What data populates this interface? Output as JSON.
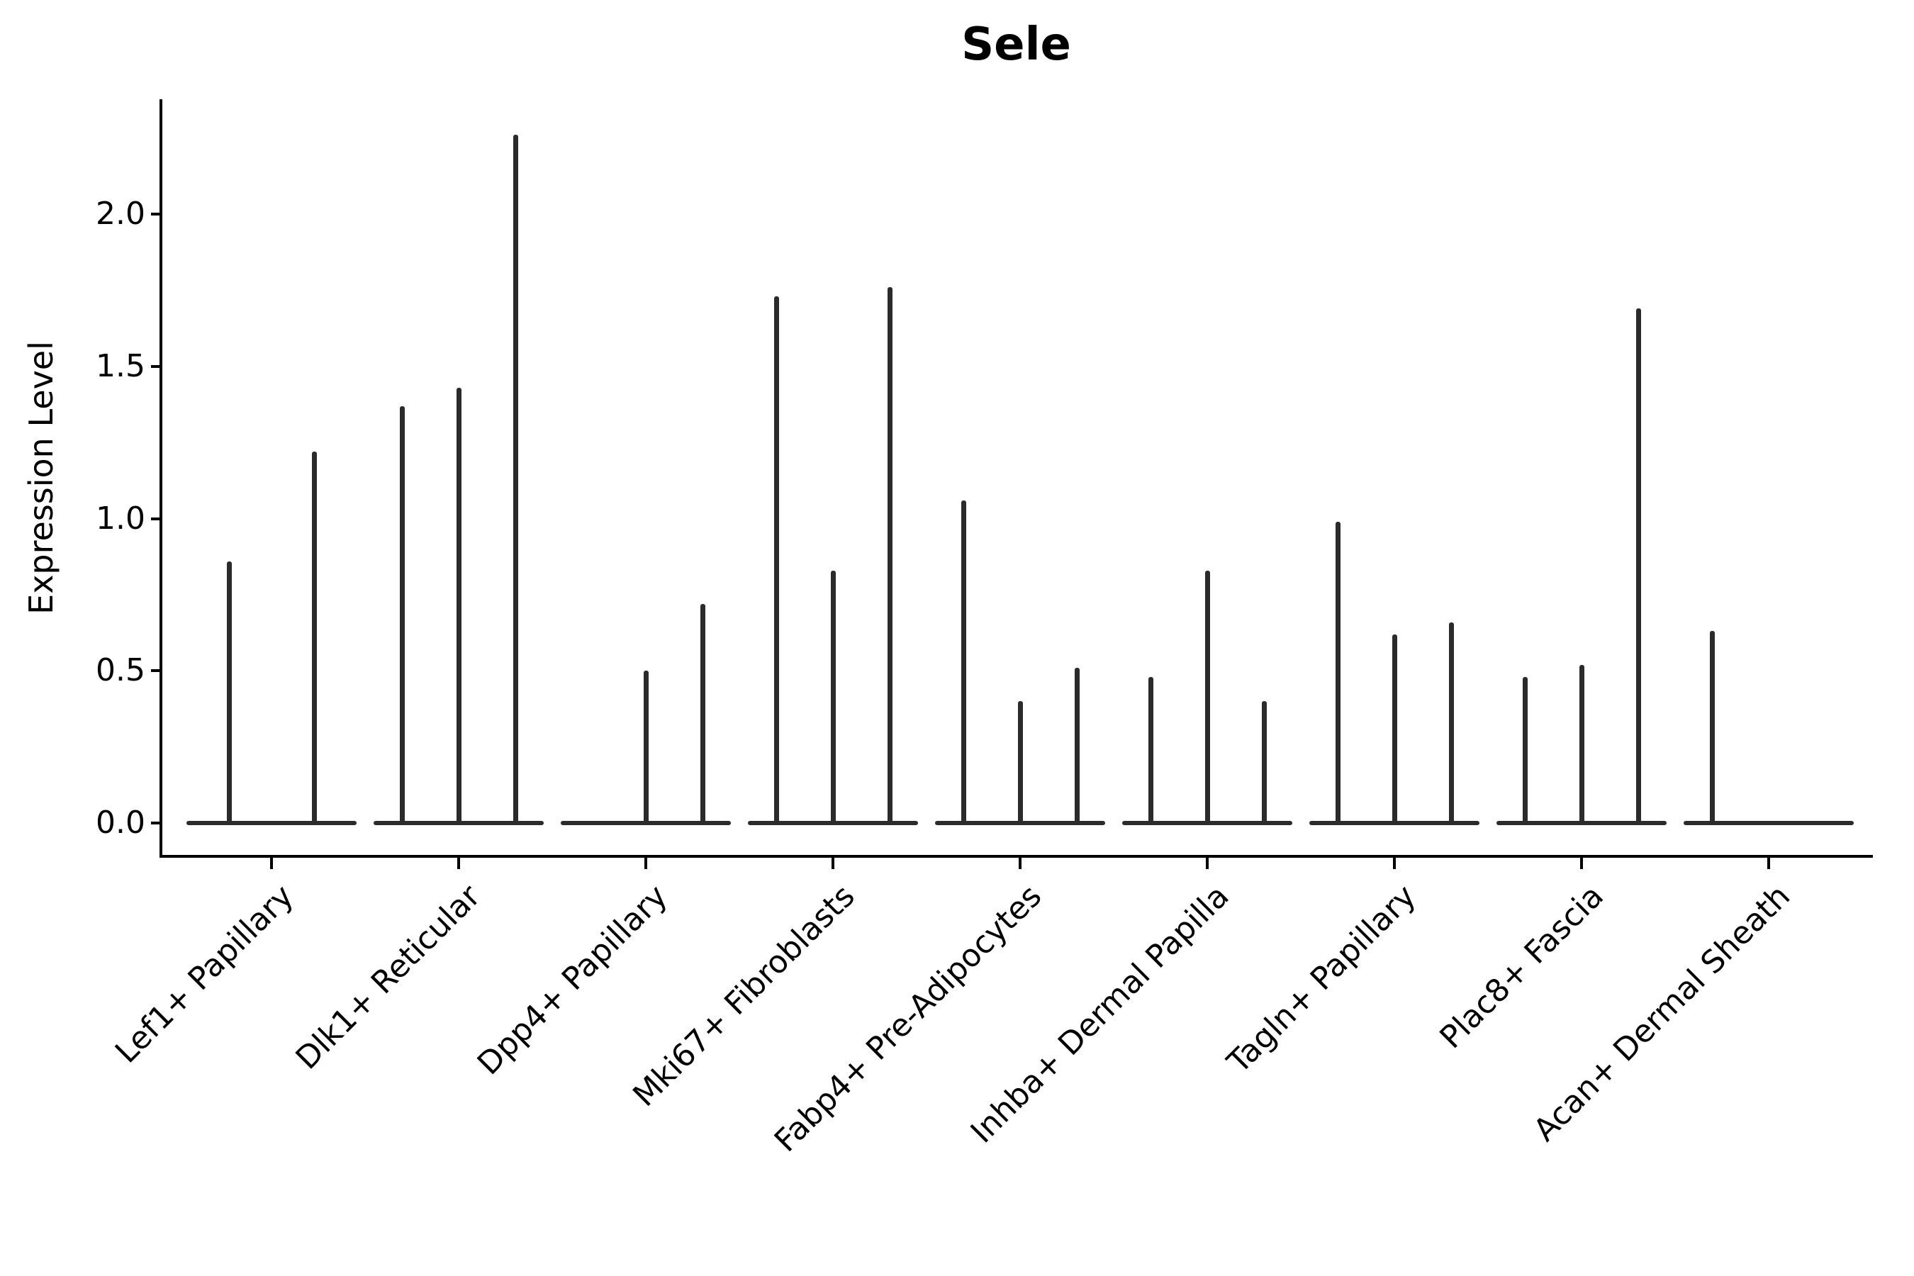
{
  "chart_data": {
    "type": "violin",
    "title": "Sele",
    "ylabel": "Expression Level",
    "xlabel": "",
    "ylim": [
      -0.1,
      2.38
    ],
    "yticks": [
      0.0,
      0.5,
      1.0,
      1.5,
      2.0
    ],
    "ytick_labels": [
      "0.0",
      "0.5",
      "1.0",
      "1.5",
      "2.0"
    ],
    "grid": false,
    "categories": [
      {
        "label": "Lef1+ Papillary",
        "violin_max_values": [
          0.86,
          1.22
        ]
      },
      {
        "label": "Dlk1+ Reticular",
        "violin_max_values": [
          1.37,
          1.43,
          2.26
        ]
      },
      {
        "label": "Dpp4+ Papillary",
        "violin_max_values": [
          0.0,
          0.5,
          0.72
        ]
      },
      {
        "label": "Mki67+ Fibroblasts",
        "violin_max_values": [
          1.73,
          0.83,
          1.76
        ]
      },
      {
        "label": "Fabp4+ Pre-Adipocytes",
        "violin_max_values": [
          1.06,
          0.4,
          0.51
        ]
      },
      {
        "label": "Inhba+ Dermal Papilla",
        "violin_max_values": [
          0.48,
          0.83,
          0.4
        ]
      },
      {
        "label": "Tagln+ Papillary",
        "violin_max_values": [
          0.99,
          0.62,
          0.66
        ]
      },
      {
        "label": "Plac8+ Fascia",
        "violin_max_values": [
          0.48,
          0.52,
          1.69
        ]
      },
      {
        "label": "Acan+ Dermal Sheath",
        "violin_max_values": [
          0.63,
          0.0,
          0.0
        ]
      }
    ],
    "colors": {
      "ink": "#000000",
      "violin": "#2b2b2b"
    }
  }
}
